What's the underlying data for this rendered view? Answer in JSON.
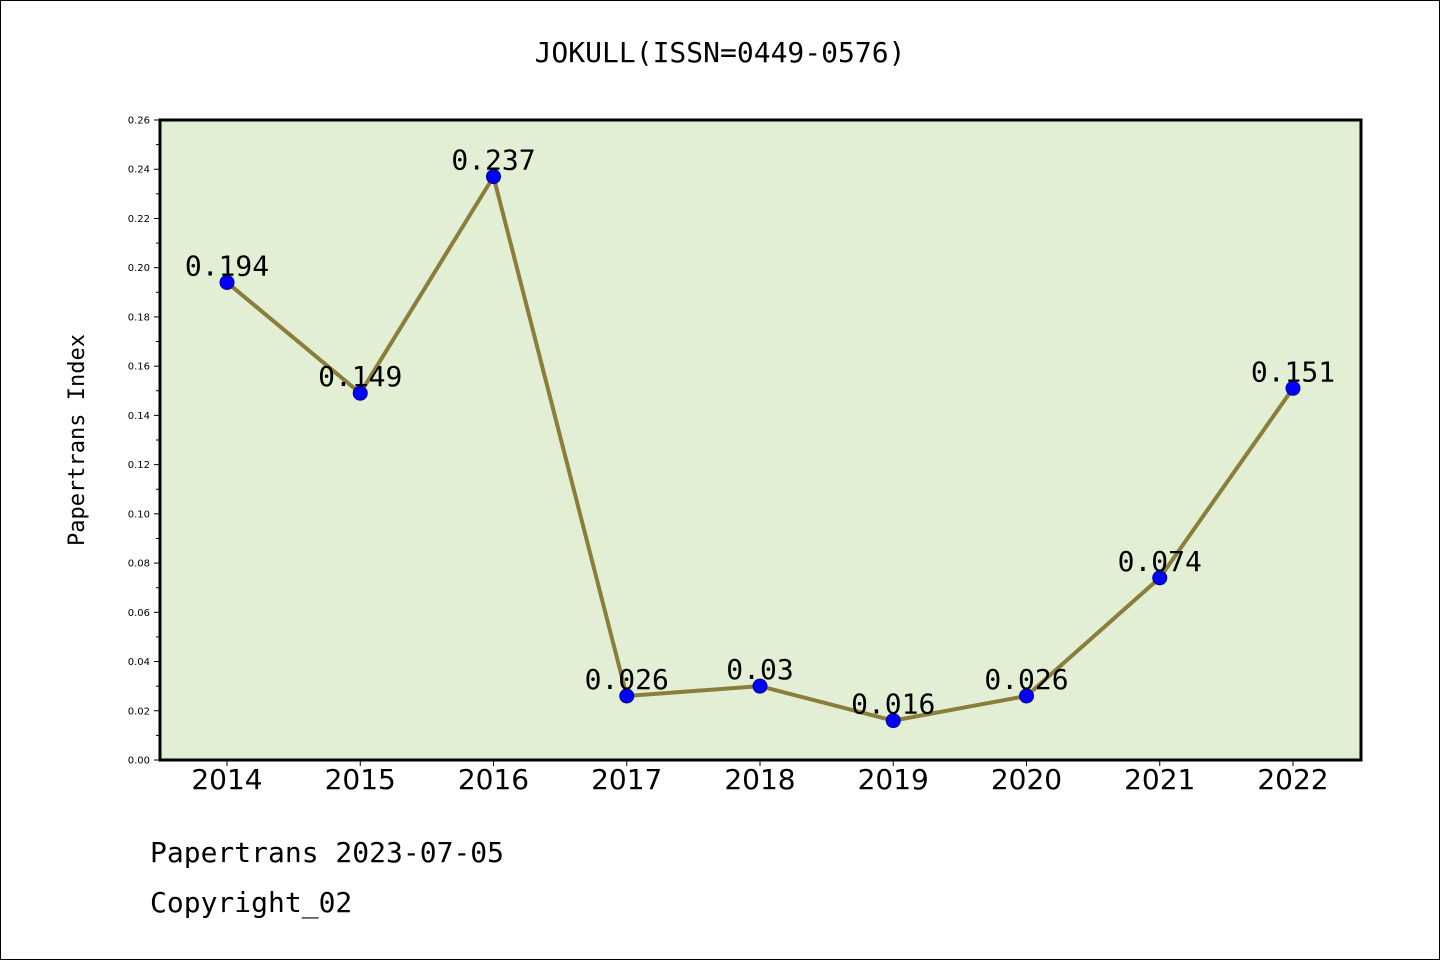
{
  "chart_data": {
    "type": "line",
    "title": "JOKULL(ISSN=0449-0576)",
    "xlabel": "",
    "ylabel": "Papertrans Index",
    "categories": [
      "2014",
      "2015",
      "2016",
      "2017",
      "2018",
      "2019",
      "2020",
      "2021",
      "2022"
    ],
    "values": [
      0.194,
      0.149,
      0.237,
      0.026,
      0.03,
      0.016,
      0.026,
      0.074,
      0.151
    ],
    "data_labels": [
      "0.194",
      "0.149",
      "0.237",
      "0.026",
      "0.03",
      "0.016",
      "0.026",
      "0.074",
      "0.151"
    ],
    "ylim": [
      0,
      0.26
    ],
    "yticks": [
      "0.00",
      "0.02",
      "0.04",
      "0.06",
      "0.08",
      "0.10",
      "0.12",
      "0.14",
      "0.16",
      "0.18",
      "0.20",
      "0.22",
      "0.24",
      "0.26"
    ],
    "grid": false,
    "colors": {
      "plot_background": "#e2efd4",
      "line": "#8b7d3a",
      "marker": "#0000ff"
    }
  },
  "footer": {
    "line1": "Papertrans 2023-07-05",
    "line2": "Copyright_02"
  }
}
